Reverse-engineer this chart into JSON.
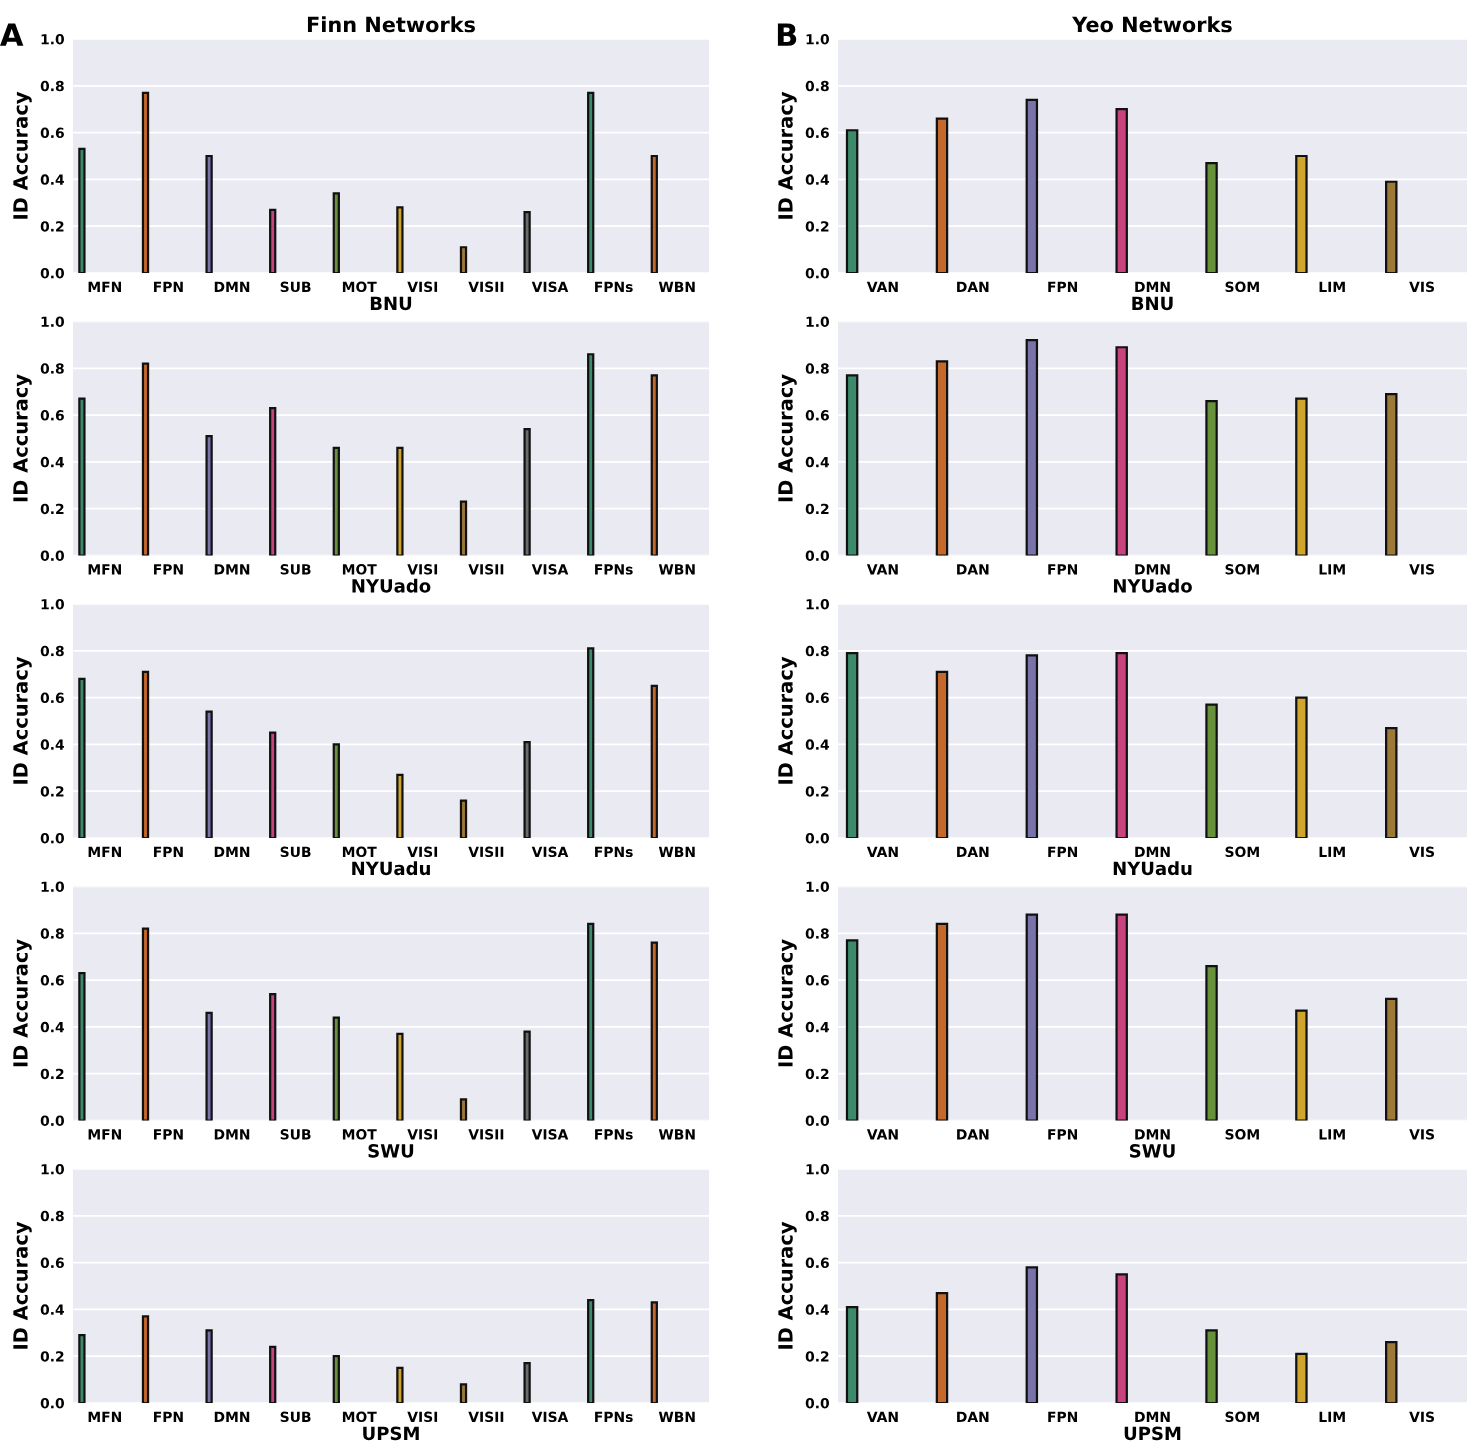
{
  "chart_data": [
    {
      "type": "bar",
      "title": "Finn Networks",
      "xlabel": "BNU",
      "ylabel": "ID Accuracy",
      "annotations": [
        "A"
      ],
      "categories": [
        "MFN",
        "FPN",
        "DMN",
        "SUB",
        "MOT",
        "VISI",
        "VISII",
        "VISA",
        "FPNs",
        "WBN"
      ],
      "values": [
        0.53,
        0.77,
        0.5,
        0.27,
        0.34,
        0.28,
        0.11,
        0.26,
        0.77,
        0.5
      ],
      "colors": [
        "#3d8a6b",
        "#c4682b",
        "#7873a8",
        "#c8447f",
        "#67913a",
        "#cfa52d",
        "#9c7839",
        "#6b6b6b",
        "#3d8a6b",
        "#c4682b"
      ],
      "ylim": [
        0,
        1
      ],
      "yticks": [
        {
          "value": 0,
          "label": "0.0"
        },
        {
          "value": 0.2,
          "label": "0.2"
        },
        {
          "value": 0.4,
          "label": "0.4"
        },
        {
          "value": 0.6,
          "label": "0.6"
        },
        {
          "value": 0.8,
          "label": "0.8"
        },
        {
          "value": 1,
          "label": "1.0"
        }
      ],
      "grid": "y"
    },
    {
      "type": "bar",
      "title": "Yeo Networks",
      "xlabel": "BNU",
      "ylabel": "ID Accuracy",
      "annotations": [
        "B"
      ],
      "categories": [
        "VAN",
        "DAN",
        "FPN",
        "DMN",
        "SOM",
        "LIM",
        "VIS"
      ],
      "values": [
        0.61,
        0.66,
        0.74,
        0.7,
        0.47,
        0.5,
        0.39
      ],
      "colors": [
        "#3d8a6b",
        "#c4682b",
        "#7873a8",
        "#c8447f",
        "#67913a",
        "#cfa52d",
        "#9c7839"
      ],
      "ylim": [
        0,
        1
      ],
      "yticks": [
        {
          "value": 0,
          "label": "0.0"
        },
        {
          "value": 0.2,
          "label": "0.2"
        },
        {
          "value": 0.4,
          "label": "0.4"
        },
        {
          "value": 0.6,
          "label": "0.6"
        },
        {
          "value": 0.8,
          "label": "0.8"
        },
        {
          "value": 1,
          "label": "1.0"
        }
      ],
      "grid": "y"
    },
    {
      "type": "bar",
      "xlabel": "NYUado",
      "ylabel": "ID Accuracy",
      "categories": [
        "MFN",
        "FPN",
        "DMN",
        "SUB",
        "MOT",
        "VISI",
        "VISII",
        "VISA",
        "FPNs",
        "WBN"
      ],
      "values": [
        0.67,
        0.82,
        0.51,
        0.63,
        0.46,
        0.46,
        0.23,
        0.54,
        0.86,
        0.77
      ],
      "colors": [
        "#3d8a6b",
        "#c4682b",
        "#7873a8",
        "#c8447f",
        "#67913a",
        "#cfa52d",
        "#9c7839",
        "#6b6b6b",
        "#3d8a6b",
        "#c4682b"
      ],
      "ylim": [
        0,
        1
      ],
      "yticks": [
        {
          "value": 0,
          "label": "0.0"
        },
        {
          "value": 0.2,
          "label": "0.2"
        },
        {
          "value": 0.4,
          "label": "0.4"
        },
        {
          "value": 0.6,
          "label": "0.6"
        },
        {
          "value": 0.8,
          "label": "0.8"
        },
        {
          "value": 1,
          "label": "1.0"
        }
      ],
      "grid": "y"
    },
    {
      "type": "bar",
      "xlabel": "NYUado",
      "ylabel": "ID Accuracy",
      "categories": [
        "VAN",
        "DAN",
        "FPN",
        "DMN",
        "SOM",
        "LIM",
        "VIS"
      ],
      "values": [
        0.77,
        0.83,
        0.92,
        0.89,
        0.66,
        0.67,
        0.69
      ],
      "colors": [
        "#3d8a6b",
        "#c4682b",
        "#7873a8",
        "#c8447f",
        "#67913a",
        "#cfa52d",
        "#9c7839"
      ],
      "ylim": [
        0,
        1
      ],
      "yticks": [
        {
          "value": 0,
          "label": "0.0"
        },
        {
          "value": 0.2,
          "label": "0.2"
        },
        {
          "value": 0.4,
          "label": "0.4"
        },
        {
          "value": 0.6,
          "label": "0.6"
        },
        {
          "value": 0.8,
          "label": "0.8"
        },
        {
          "value": 1,
          "label": "1.0"
        }
      ],
      "grid": "y"
    },
    {
      "type": "bar",
      "xlabel": "NYUadu",
      "ylabel": "ID Accuracy",
      "categories": [
        "MFN",
        "FPN",
        "DMN",
        "SUB",
        "MOT",
        "VISI",
        "VISII",
        "VISA",
        "FPNs",
        "WBN"
      ],
      "values": [
        0.68,
        0.71,
        0.54,
        0.45,
        0.4,
        0.27,
        0.16,
        0.41,
        0.81,
        0.65
      ],
      "colors": [
        "#3d8a6b",
        "#c4682b",
        "#7873a8",
        "#c8447f",
        "#67913a",
        "#cfa52d",
        "#9c7839",
        "#6b6b6b",
        "#3d8a6b",
        "#c4682b"
      ],
      "ylim": [
        0,
        1
      ],
      "yticks": [
        {
          "value": 0,
          "label": "0.0"
        },
        {
          "value": 0.2,
          "label": "0.2"
        },
        {
          "value": 0.4,
          "label": "0.4"
        },
        {
          "value": 0.6,
          "label": "0.6"
        },
        {
          "value": 0.8,
          "label": "0.8"
        },
        {
          "value": 1,
          "label": "1.0"
        }
      ],
      "grid": "y"
    },
    {
      "type": "bar",
      "xlabel": "NYUadu",
      "ylabel": "ID Accuracy",
      "categories": [
        "VAN",
        "DAN",
        "FPN",
        "DMN",
        "SOM",
        "LIM",
        "VIS"
      ],
      "values": [
        0.79,
        0.71,
        0.78,
        0.79,
        0.57,
        0.6,
        0.47
      ],
      "colors": [
        "#3d8a6b",
        "#c4682b",
        "#7873a8",
        "#c8447f",
        "#67913a",
        "#cfa52d",
        "#9c7839"
      ],
      "ylim": [
        0,
        1
      ],
      "yticks": [
        {
          "value": 0,
          "label": "0.0"
        },
        {
          "value": 0.2,
          "label": "0.2"
        },
        {
          "value": 0.4,
          "label": "0.4"
        },
        {
          "value": 0.6,
          "label": "0.6"
        },
        {
          "value": 0.8,
          "label": "0.8"
        },
        {
          "value": 1,
          "label": "1.0"
        }
      ],
      "grid": "y"
    },
    {
      "type": "bar",
      "xlabel": "SWU",
      "ylabel": "ID Accuracy",
      "categories": [
        "MFN",
        "FPN",
        "DMN",
        "SUB",
        "MOT",
        "VISI",
        "VISII",
        "VISA",
        "FPNs",
        "WBN"
      ],
      "values": [
        0.63,
        0.82,
        0.46,
        0.54,
        0.44,
        0.37,
        0.09,
        0.38,
        0.84,
        0.76
      ],
      "colors": [
        "#3d8a6b",
        "#c4682b",
        "#7873a8",
        "#c8447f",
        "#67913a",
        "#cfa52d",
        "#9c7839",
        "#6b6b6b",
        "#3d8a6b",
        "#c4682b"
      ],
      "ylim": [
        0,
        1
      ],
      "yticks": [
        {
          "value": 0,
          "label": "0.0"
        },
        {
          "value": 0.2,
          "label": "0.2"
        },
        {
          "value": 0.4,
          "label": "0.4"
        },
        {
          "value": 0.6,
          "label": "0.6"
        },
        {
          "value": 0.8,
          "label": "0.8"
        },
        {
          "value": 1,
          "label": "1.0"
        }
      ],
      "grid": "y"
    },
    {
      "type": "bar",
      "xlabel": "SWU",
      "ylabel": "ID Accuracy",
      "categories": [
        "VAN",
        "DAN",
        "FPN",
        "DMN",
        "SOM",
        "LIM",
        "VIS"
      ],
      "values": [
        0.77,
        0.84,
        0.88,
        0.88,
        0.66,
        0.47,
        0.52
      ],
      "colors": [
        "#3d8a6b",
        "#c4682b",
        "#7873a8",
        "#c8447f",
        "#67913a",
        "#cfa52d",
        "#9c7839"
      ],
      "ylim": [
        0,
        1
      ],
      "yticks": [
        {
          "value": 0,
          "label": "0.0"
        },
        {
          "value": 0.2,
          "label": "0.2"
        },
        {
          "value": 0.4,
          "label": "0.4"
        },
        {
          "value": 0.6,
          "label": "0.6"
        },
        {
          "value": 0.8,
          "label": "0.8"
        },
        {
          "value": 1,
          "label": "1.0"
        }
      ],
      "grid": "y"
    },
    {
      "type": "bar",
      "xlabel": "UPSM",
      "ylabel": "ID Accuracy",
      "categories": [
        "MFN",
        "FPN",
        "DMN",
        "SUB",
        "MOT",
        "VISI",
        "VISII",
        "VISA",
        "FPNs",
        "WBN"
      ],
      "values": [
        0.29,
        0.37,
        0.31,
        0.24,
        0.2,
        0.15,
        0.08,
        0.17,
        0.44,
        0.43
      ],
      "colors": [
        "#3d8a6b",
        "#c4682b",
        "#7873a8",
        "#c8447f",
        "#67913a",
        "#cfa52d",
        "#9c7839",
        "#6b6b6b",
        "#3d8a6b",
        "#c4682b"
      ],
      "ylim": [
        0,
        1
      ],
      "yticks": [
        {
          "value": 0,
          "label": "0.0"
        },
        {
          "value": 0.2,
          "label": "0.2"
        },
        {
          "value": 0.4,
          "label": "0.4"
        },
        {
          "value": 0.6,
          "label": "0.6"
        },
        {
          "value": 0.8,
          "label": "0.8"
        },
        {
          "value": 1,
          "label": "1.0"
        }
      ],
      "grid": "y"
    },
    {
      "type": "bar",
      "xlabel": "UPSM",
      "ylabel": "ID Accuracy",
      "categories": [
        "VAN",
        "DAN",
        "FPN",
        "DMN",
        "SOM",
        "LIM",
        "VIS"
      ],
      "values": [
        0.41,
        0.47,
        0.58,
        0.55,
        0.31,
        0.21,
        0.26
      ],
      "colors": [
        "#3d8a6b",
        "#c4682b",
        "#7873a8",
        "#c8447f",
        "#67913a",
        "#cfa52d",
        "#9c7839"
      ],
      "ylim": [
        0,
        1
      ],
      "yticks": [
        {
          "value": 0,
          "label": "0.0"
        },
        {
          "value": 0.2,
          "label": "0.2"
        },
        {
          "value": 0.4,
          "label": "0.4"
        },
        {
          "value": 0.6,
          "label": "0.6"
        },
        {
          "value": 0.8,
          "label": "0.8"
        },
        {
          "value": 1,
          "label": "1.0"
        }
      ],
      "grid": "y"
    }
  ]
}
